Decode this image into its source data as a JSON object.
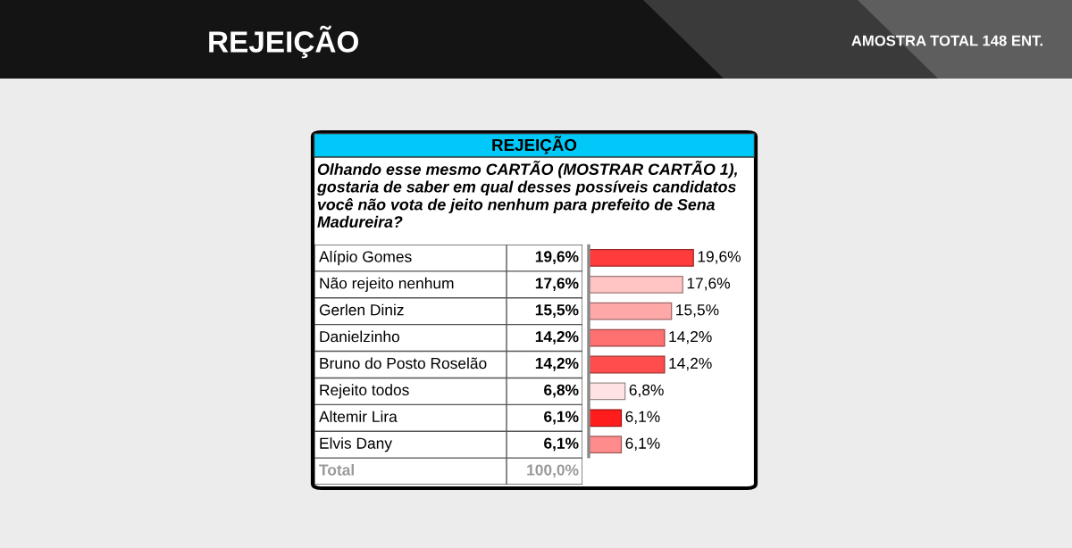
{
  "chart_data": {
    "type": "bar",
    "orientation": "horizontal",
    "title": "REJEIÇÃO",
    "subtitle": "Olhando esse mesmo CARTÃO (MOSTRAR CARTÃO 1), gostaria de saber em qual desses possíveis candidatos você não vota de jeito nenhum para prefeito de Sena Madureira?",
    "categories": [
      "Alípio Gomes",
      "Não rejeito nenhum",
      "Gerlen Diniz",
      "Danielzinho",
      "Bruno do Posto Roselão",
      "Rejeito todos",
      "Altemir Lira",
      "Elvis Dany"
    ],
    "values": [
      19.6,
      17.6,
      15.5,
      14.2,
      14.2,
      6.8,
      6.1,
      6.1
    ],
    "colors": [
      "#ff3b3b",
      "#ffc4c4",
      "#ffa8a8",
      "#ff7070",
      "#ff4d4d",
      "#ffe2e2",
      "#ff1c1c",
      "#ff8c8c"
    ],
    "value_labels": [
      "19,6%",
      "17,6%",
      "15,5%",
      "14,2%",
      "14,2%",
      "6,8%",
      "6,1%",
      "6,1%"
    ],
    "annotations": [
      "AMOSTRA TOTAL 148 ENT.",
      "REJEIÇÃO",
      "Total",
      "100,0%"
    ]
  }
}
